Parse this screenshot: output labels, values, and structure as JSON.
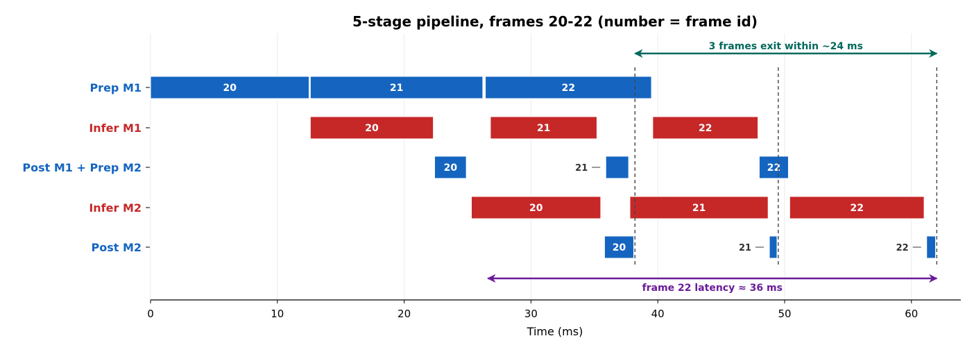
{
  "chart_data": {
    "type": "gantt",
    "title": "5-stage pipeline, frames 20-22 (number = frame id)",
    "xlabel": "Time (ms)",
    "ylabel": "",
    "xlim": [
      0,
      64
    ],
    "xticks": [
      0,
      10,
      20,
      30,
      40,
      50,
      60
    ],
    "colors": {
      "prep": "#1565c0",
      "infer": "#c62828",
      "exit_arrow": "#00695c",
      "latency_arrow": "#6a1b9a"
    },
    "stages": [
      {
        "label": "Prep M1",
        "color": "#1565c0",
        "color_key": "prep",
        "bars": [
          {
            "start": 0,
            "end": 12.5,
            "frame": "20"
          },
          {
            "start": 12.6,
            "end": 26.2,
            "frame": "21"
          },
          {
            "start": 26.4,
            "end": 39.5,
            "frame": "22"
          }
        ]
      },
      {
        "label": "Infer M1",
        "color": "#c62828",
        "color_key": "infer",
        "bars": [
          {
            "start": 12.6,
            "end": 22.3,
            "frame": "20"
          },
          {
            "start": 26.8,
            "end": 35.2,
            "frame": "21"
          },
          {
            "start": 39.6,
            "end": 47.9,
            "frame": "22"
          }
        ]
      },
      {
        "label": "Post M1 + Prep M2",
        "color": "#1565c0",
        "color_key": "prep",
        "bars": [
          {
            "start": 22.4,
            "end": 24.9,
            "frame": "20"
          },
          {
            "start": 35.9,
            "end": 37.7,
            "frame": "21"
          },
          {
            "start": 48.0,
            "end": 50.3,
            "frame": "22"
          }
        ]
      },
      {
        "label": "Infer M2",
        "color": "#c62828",
        "color_key": "infer",
        "bars": [
          {
            "start": 25.3,
            "end": 35.5,
            "frame": "20"
          },
          {
            "start": 37.8,
            "end": 48.7,
            "frame": "21"
          },
          {
            "start": 50.4,
            "end": 61.0,
            "frame": "22"
          }
        ]
      },
      {
        "label": "Post M2",
        "color": "#1565c0",
        "color_key": "prep",
        "bars": [
          {
            "start": 35.8,
            "end": 38.1,
            "frame": "20"
          },
          {
            "start": 48.8,
            "end": 49.4,
            "frame": "21"
          },
          {
            "start": 61.2,
            "end": 61.9,
            "frame": "22"
          }
        ]
      }
    ],
    "frame_exits": [
      38.2,
      49.5,
      62.0
    ],
    "annotations": {
      "exit_span": {
        "from": 38.2,
        "to": 62.0,
        "text": "3 frames exit within ~24 ms"
      },
      "latency_span": {
        "from": 26.6,
        "to": 62.0,
        "text": "frame 22 latency ≈ 36 ms"
      }
    }
  }
}
